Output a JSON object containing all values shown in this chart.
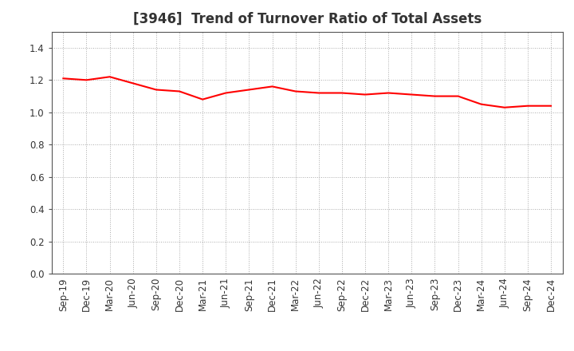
{
  "title": "[3946]  Trend of Turnover Ratio of Total Assets",
  "x_labels": [
    "Sep-19",
    "Dec-19",
    "Mar-20",
    "Jun-20",
    "Sep-20",
    "Dec-20",
    "Mar-21",
    "Jun-21",
    "Sep-21",
    "Dec-21",
    "Mar-22",
    "Jun-22",
    "Sep-22",
    "Dec-22",
    "Mar-23",
    "Jun-23",
    "Sep-23",
    "Dec-23",
    "Mar-24",
    "Jun-24",
    "Sep-24",
    "Dec-24"
  ],
  "y_values": [
    1.21,
    1.2,
    1.22,
    1.18,
    1.14,
    1.13,
    1.08,
    1.12,
    1.14,
    1.16,
    1.13,
    1.12,
    1.12,
    1.11,
    1.12,
    1.11,
    1.1,
    1.1,
    1.05,
    1.03,
    1.04,
    1.04
  ],
  "line_color": "#ff0000",
  "line_width": 1.5,
  "ylim": [
    0.0,
    1.5
  ],
  "yticks": [
    0.0,
    0.2,
    0.4,
    0.6,
    0.8,
    1.0,
    1.2,
    1.4
  ],
  "title_fontsize": 12,
  "tick_fontsize": 8.5,
  "background_color": "#ffffff",
  "plot_bg_color": "#ffffff",
  "grid_color": "#aaaaaa",
  "title_color": "#333333"
}
